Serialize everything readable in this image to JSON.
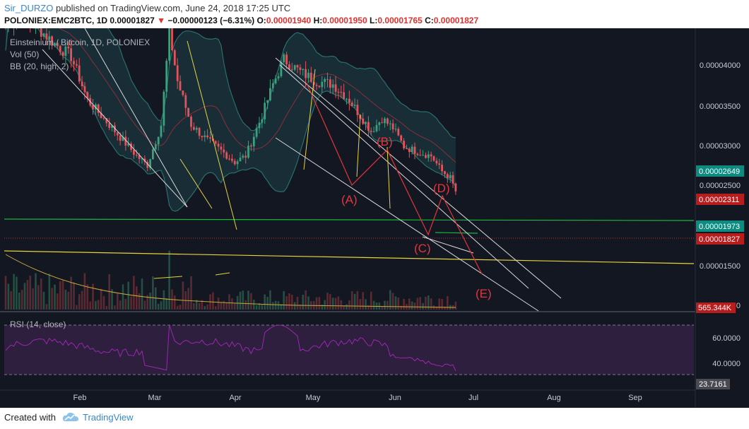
{
  "header": {
    "user": "Sir_DURZO",
    "published_text": "published on TradingView.com, June 24, 2018 17:25 UTC",
    "symbol": "POLONIEX:EMC2BTC,",
    "timeframe": "1D",
    "last": "0.00001827",
    "change": "−0.00000123 (−6.31%)",
    "open_label": "O:",
    "open": "0.00001940",
    "high_label": "H:",
    "high": "0.00001950",
    "low_label": "L:",
    "low": "0.00001765",
    "close_label": "C:",
    "close": "0.00001827"
  },
  "legend": {
    "title": "Einsteinium / Bitcoin, 1D, POLONIEX",
    "vol": "Vol (50)",
    "bb": "BB (20, high, 2)",
    "rsi": "RSI (14, close)"
  },
  "chart_data": {
    "type": "candlestick",
    "x_labels": [
      "Feb",
      "Mar",
      "Apr",
      "May",
      "Jun",
      "Jul",
      "Aug",
      "Sep"
    ],
    "price_ticks": [
      "0.00004000",
      "0.00003500",
      "0.00003000",
      "0.00002500",
      "0.00001500",
      "0"
    ],
    "price_badges": [
      {
        "value": "0.00002649",
        "color": "#0f8a7e"
      },
      {
        "value": "0.00002311",
        "color": "#b81d1d"
      },
      {
        "value": "0.00001973",
        "color": "#0f8a7e"
      },
      {
        "value": "0.00001827",
        "color": "#b81d1d"
      }
    ],
    "volume_badge": "565.344K",
    "rsi_ticks": [
      "60.0000",
      "40.0000"
    ],
    "rsi_badge": "23.7161",
    "wave_labels": [
      "(A)",
      "(B)",
      "(C)",
      "(D)",
      "(E)"
    ],
    "ylim": [
      0,
      4.45e-05
    ],
    "rsi_ylim": [
      20,
      80
    ],
    "colors": {
      "up": "#3c9f7e",
      "down": "#e4535b",
      "bb": "#2a6f6b",
      "yellow": "#e6d33d",
      "green": "#16b93c",
      "wave": "#e4353b"
    }
  },
  "footer": {
    "created": "Created with",
    "brand": "TradingView"
  }
}
